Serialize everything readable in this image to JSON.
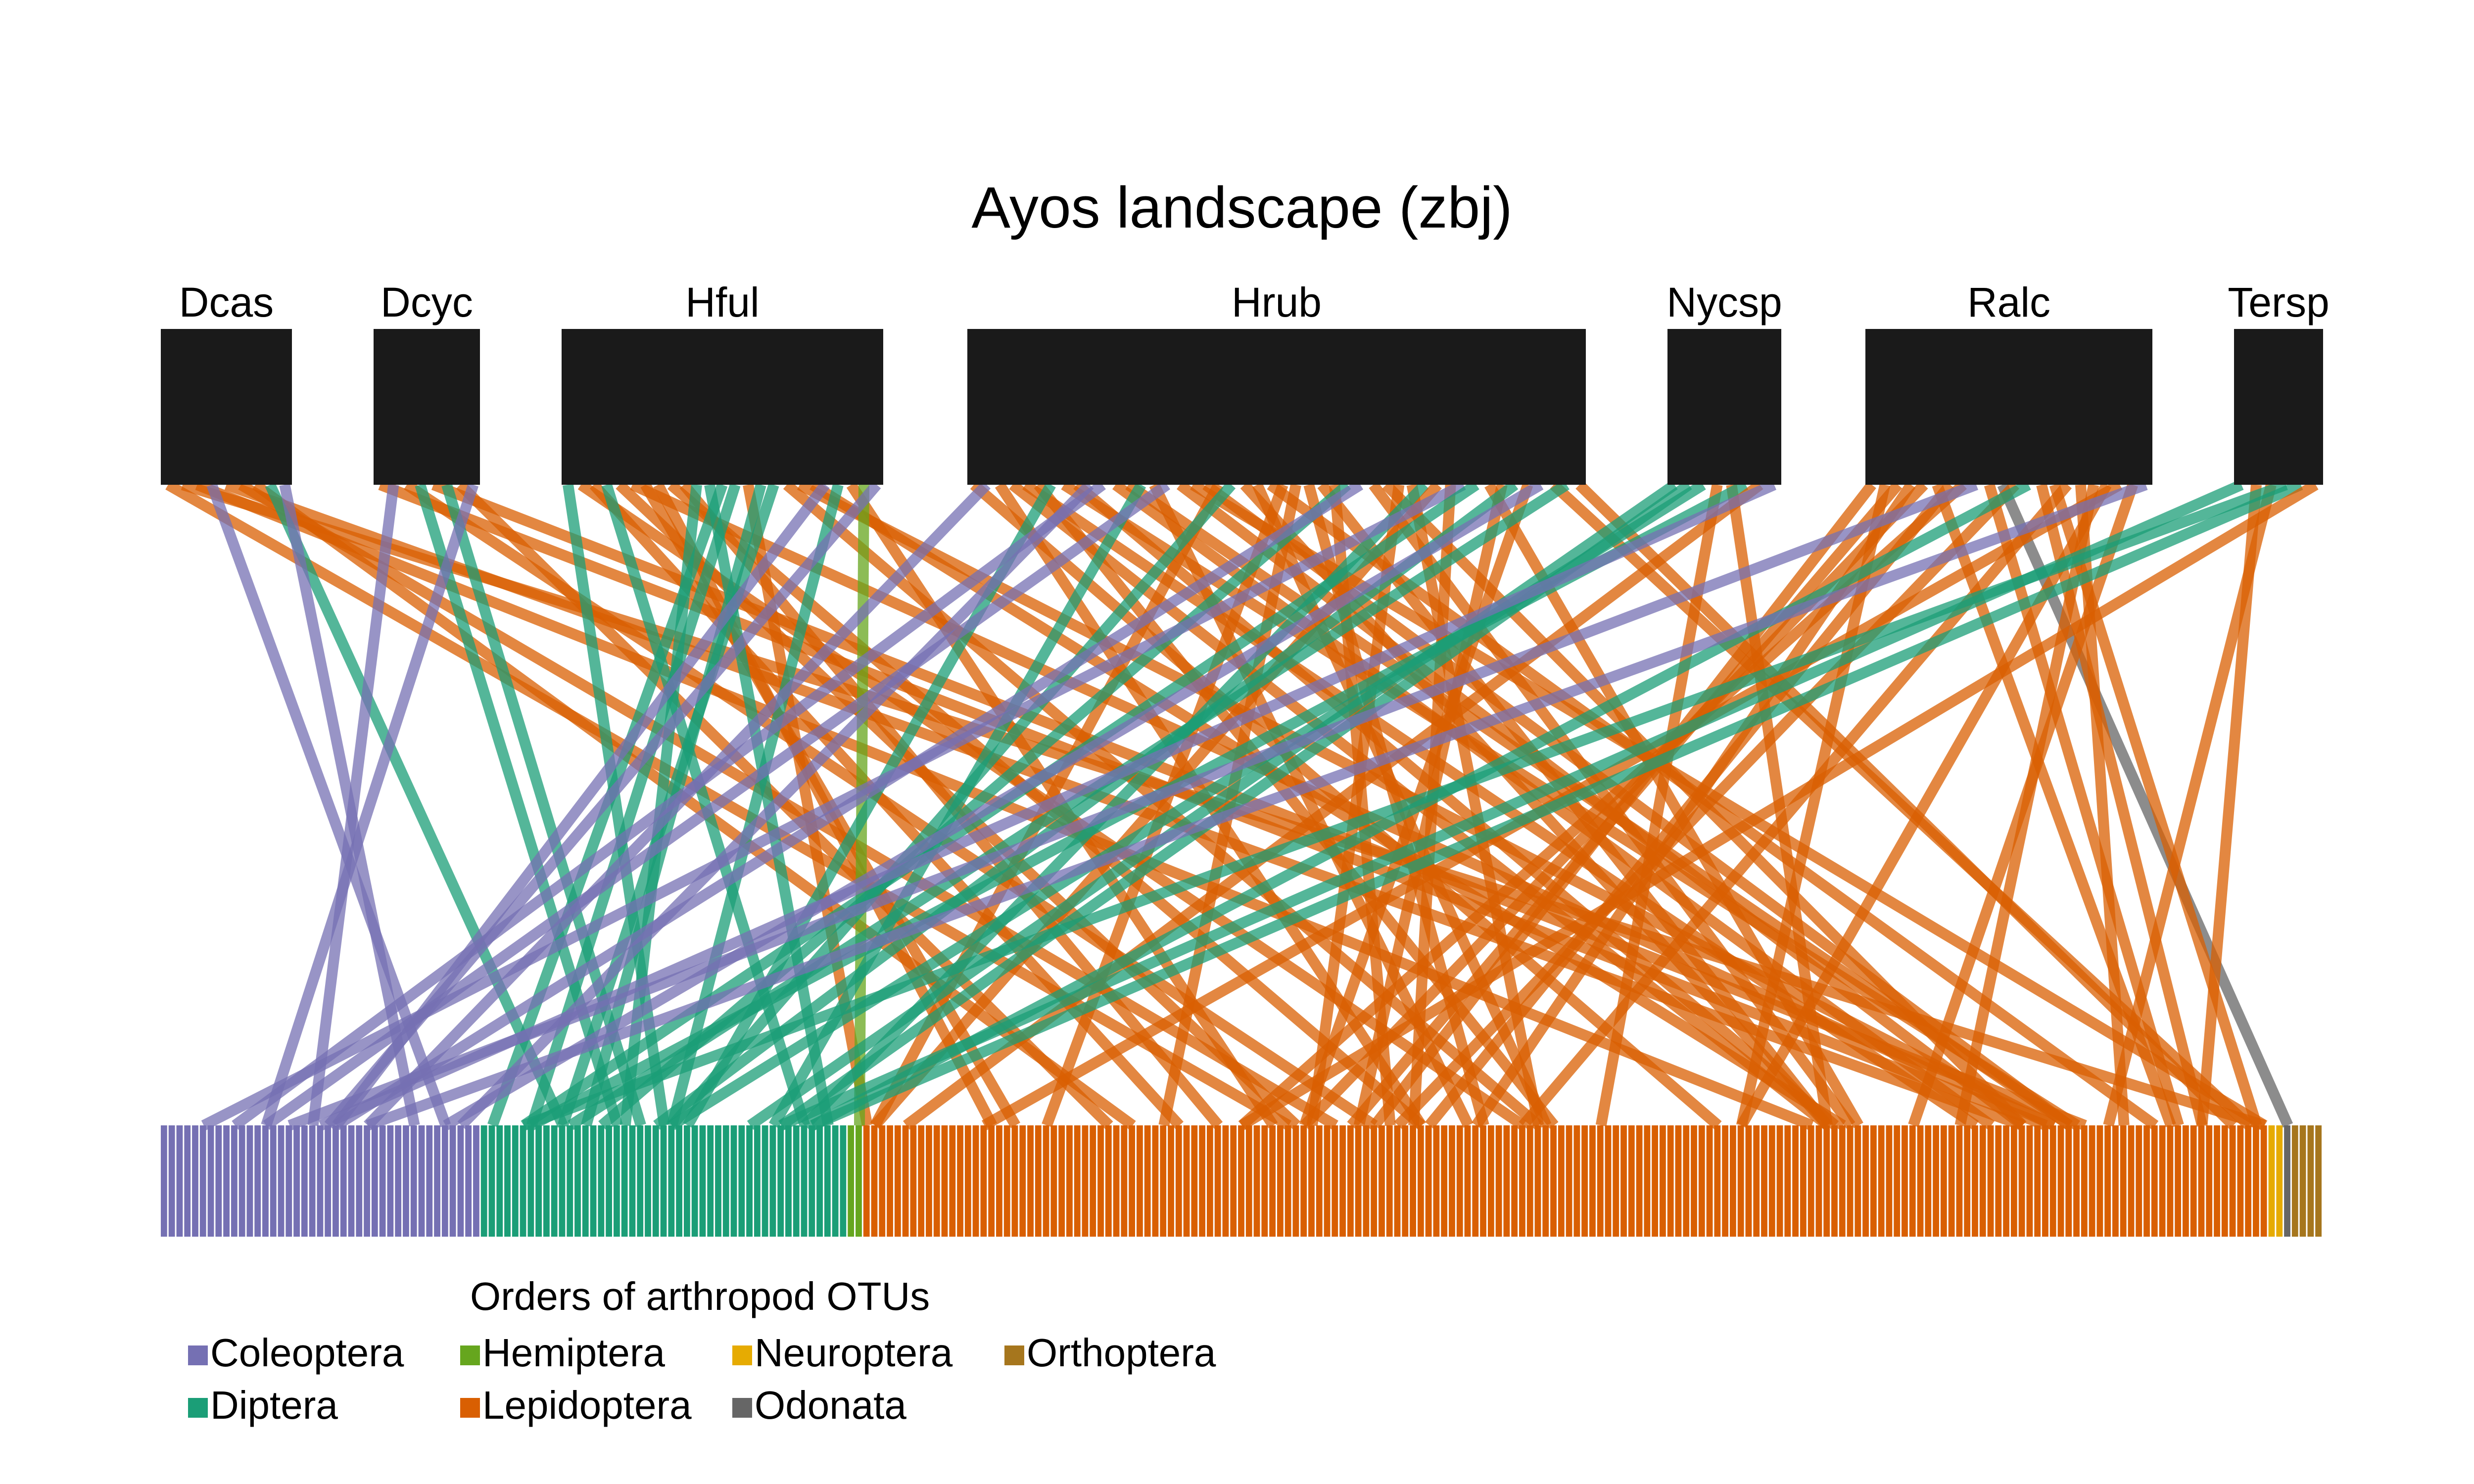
{
  "title": "Ayos landscape (zbj)",
  "legend": {
    "title": "Orders of arthropod OTUs",
    "items": [
      {
        "label": "Coleoptera",
        "color": "#7570b3"
      },
      {
        "label": "Hemiptera",
        "color": "#66a61e"
      },
      {
        "label": "Neuroptera",
        "color": "#e6ab02"
      },
      {
        "label": "Orthoptera",
        "color": "#a6761d"
      },
      {
        "label": "Diptera",
        "color": "#1b9e77"
      },
      {
        "label": "Lepidoptera",
        "color": "#d95f02"
      },
      {
        "label": "Odonata",
        "color": "#666666"
      }
    ]
  },
  "hosts": [
    {
      "label": "Dcas",
      "degree": 9
    },
    {
      "label": "Dcyc",
      "degree": 8
    },
    {
      "label": "Hful",
      "degree": 25
    },
    {
      "label": "Hrub",
      "degree": 48
    },
    {
      "label": "Nycsp",
      "degree": 8
    },
    {
      "label": "Ralc",
      "degree": 22
    },
    {
      "label": "Tersp",
      "degree": 6
    }
  ],
  "otu_orders": [
    {
      "order": "Coleoptera",
      "count": 41
    },
    {
      "order": "Diptera",
      "count": 47
    },
    {
      "order": "Hemiptera",
      "count": 2
    },
    {
      "order": "Lepidoptera",
      "count": 180
    },
    {
      "order": "Neuroptera",
      "count": 2
    },
    {
      "order": "Odonata",
      "count": 1
    },
    {
      "order": "Orthoptera",
      "count": 4
    }
  ],
  "colors": {
    "host_block": "#1a1a1a",
    "Coleoptera": "#7570b3",
    "Diptera": "#1b9e77",
    "Hemiptera": "#66a61e",
    "Lepidoptera": "#d95f02",
    "Neuroptera": "#e6ab02",
    "Odonata": "#666666",
    "Orthoptera": "#a6761d"
  }
}
